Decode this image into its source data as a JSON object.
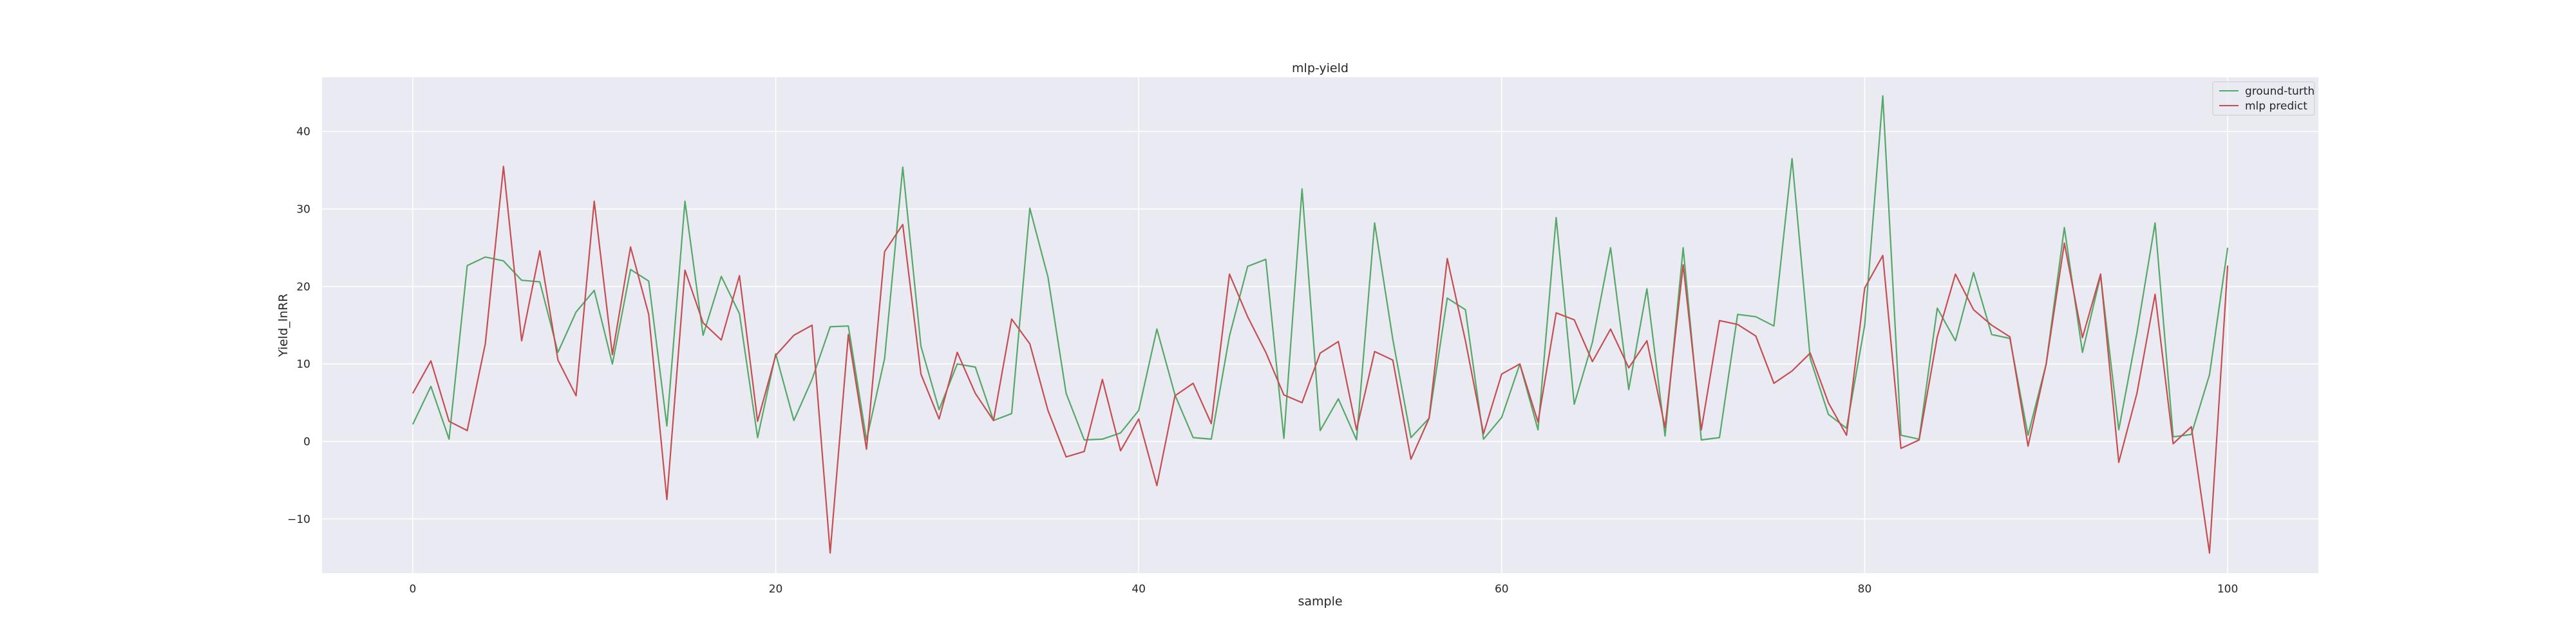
{
  "chart_data": {
    "type": "line",
    "title": "mlp-yield",
    "xlabel": "sample",
    "ylabel": "Yield_lnRR",
    "xlim": [
      -5,
      105
    ],
    "ylim": [
      -17,
      47
    ],
    "xticks": [
      0,
      20,
      40,
      60,
      80,
      100
    ],
    "yticks": [
      -10,
      0,
      10,
      20,
      30,
      40
    ],
    "grid": true,
    "legend_position": "top-right",
    "x": [
      0,
      1,
      2,
      3,
      4,
      5,
      6,
      7,
      8,
      9,
      10,
      11,
      12,
      13,
      14,
      15,
      16,
      17,
      18,
      19,
      20,
      21,
      22,
      23,
      24,
      25,
      26,
      27,
      28,
      29,
      30,
      31,
      32,
      33,
      34,
      35,
      36,
      37,
      38,
      39,
      40,
      41,
      42,
      43,
      44,
      45,
      46,
      47,
      48,
      49,
      50,
      51,
      52,
      53,
      54,
      55,
      56,
      57,
      58,
      59,
      60,
      61,
      62,
      63,
      64,
      65,
      66,
      67,
      68,
      69,
      70,
      71,
      72,
      73,
      74,
      75,
      76,
      77,
      78,
      79,
      80,
      81,
      82,
      83,
      84,
      85,
      86,
      87,
      88,
      89,
      90,
      91,
      92,
      93,
      94,
      95,
      96,
      97,
      98,
      99,
      100
    ],
    "series": [
      {
        "name": "ground-turth",
        "color": "#55a868",
        "values": [
          2.2,
          7.1,
          0.3,
          22.7,
          23.8,
          23.3,
          20.8,
          20.6,
          11.5,
          16.7,
          19.5,
          10.0,
          22.2,
          20.7,
          2.0,
          31.0,
          13.7,
          21.3,
          16.5,
          0.5,
          11.3,
          2.7,
          8.0,
          14.8,
          14.9,
          0.2,
          10.7,
          35.4,
          12.3,
          4.1,
          10.0,
          9.6,
          2.7,
          3.6,
          30.1,
          21.2,
          6.2,
          0.2,
          0.3,
          1.1,
          4.0,
          14.5,
          6.0,
          0.5,
          0.3,
          13.6,
          22.6,
          23.5,
          0.4,
          32.6,
          1.4,
          5.5,
          0.2,
          28.2,
          13.2,
          0.5,
          3.0,
          18.5,
          17.0,
          0.3,
          3.1,
          10.0,
          1.5,
          28.9,
          4.8,
          12.8,
          25.0,
          6.7,
          19.7,
          0.7,
          25.0,
          0.2,
          0.5,
          16.4,
          16.1,
          14.9,
          36.5,
          10.7,
          3.5,
          1.7,
          15.0,
          44.6,
          0.8,
          0.3,
          17.2,
          13.0,
          21.8,
          13.8,
          13.3,
          0.8,
          10.0,
          27.6,
          11.5,
          21.4,
          1.5,
          14.0,
          28.2,
          0.6,
          0.9,
          8.6,
          25.0
        ]
      },
      {
        "name": "mlp predict",
        "color": "#c44e52",
        "values": [
          6.2,
          10.4,
          2.6,
          1.4,
          12.6,
          35.5,
          13.0,
          24.6,
          10.5,
          5.9,
          31.0,
          11.2,
          25.1,
          16.4,
          -7.5,
          22.1,
          15.3,
          13.1,
          21.4,
          2.6,
          11.1,
          13.7,
          15.0,
          -14.4,
          13.8,
          -1.0,
          24.5,
          28.0,
          8.7,
          2.9,
          11.5,
          6.2,
          2.7,
          15.8,
          12.6,
          4.0,
          -2.0,
          -1.3,
          8.0,
          -1.2,
          2.9,
          -5.7,
          5.9,
          7.5,
          2.3,
          21.6,
          16.1,
          11.5,
          6.0,
          5.0,
          11.4,
          12.9,
          1.5,
          11.6,
          10.5,
          -2.3,
          3.0,
          23.6,
          13.0,
          1.0,
          8.7,
          10.0,
          2.5,
          16.6,
          15.7,
          10.3,
          14.5,
          9.5,
          13.0,
          1.8,
          22.8,
          1.5,
          15.6,
          15.1,
          13.6,
          7.5,
          9.1,
          11.4,
          5.0,
          0.8,
          19.8,
          24.0,
          -0.9,
          0.2,
          13.5,
          21.6,
          17.0,
          15.0,
          13.5,
          -0.6,
          10.0,
          25.6,
          13.4,
          21.6,
          -2.7,
          6.2,
          19.0,
          -0.3,
          1.9,
          -14.4,
          22.7
        ]
      }
    ]
  }
}
